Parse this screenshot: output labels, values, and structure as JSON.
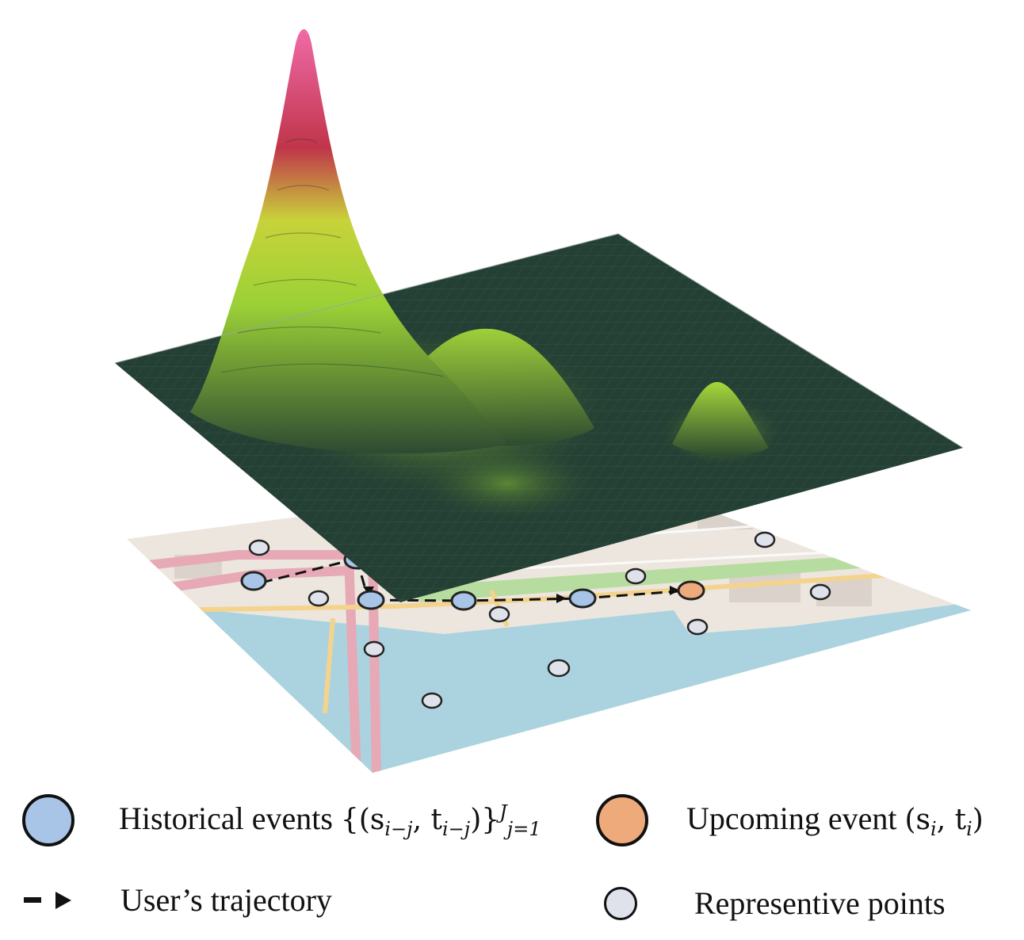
{
  "colors": {
    "historical": "#a8c4e6",
    "upcoming": "#eeaa7b",
    "representative": "#dfe2ea",
    "surface_low": "#243f34",
    "surface_mid": "#9bd136",
    "surface_high": "#e0196a",
    "water": "#aad3df",
    "land": "#ece6df"
  },
  "legend": {
    "historical_label": "Historical events",
    "historical_math": "{(s",
    "historical_sub1": "i−j",
    "historical_mid": ", t",
    "historical_sub2": "i−j",
    "historical_close": ")}",
    "historical_sup": "J",
    "historical_sub3": "j=1",
    "upcoming_label": "Upcoming event",
    "upcoming_math": "(s",
    "upcoming_sub1": "i",
    "upcoming_mid": ", t",
    "upcoming_sub2": "i",
    "upcoming_close": ")",
    "trajectory_label": "User’s trajectory",
    "representative_label": "Representive points"
  }
}
